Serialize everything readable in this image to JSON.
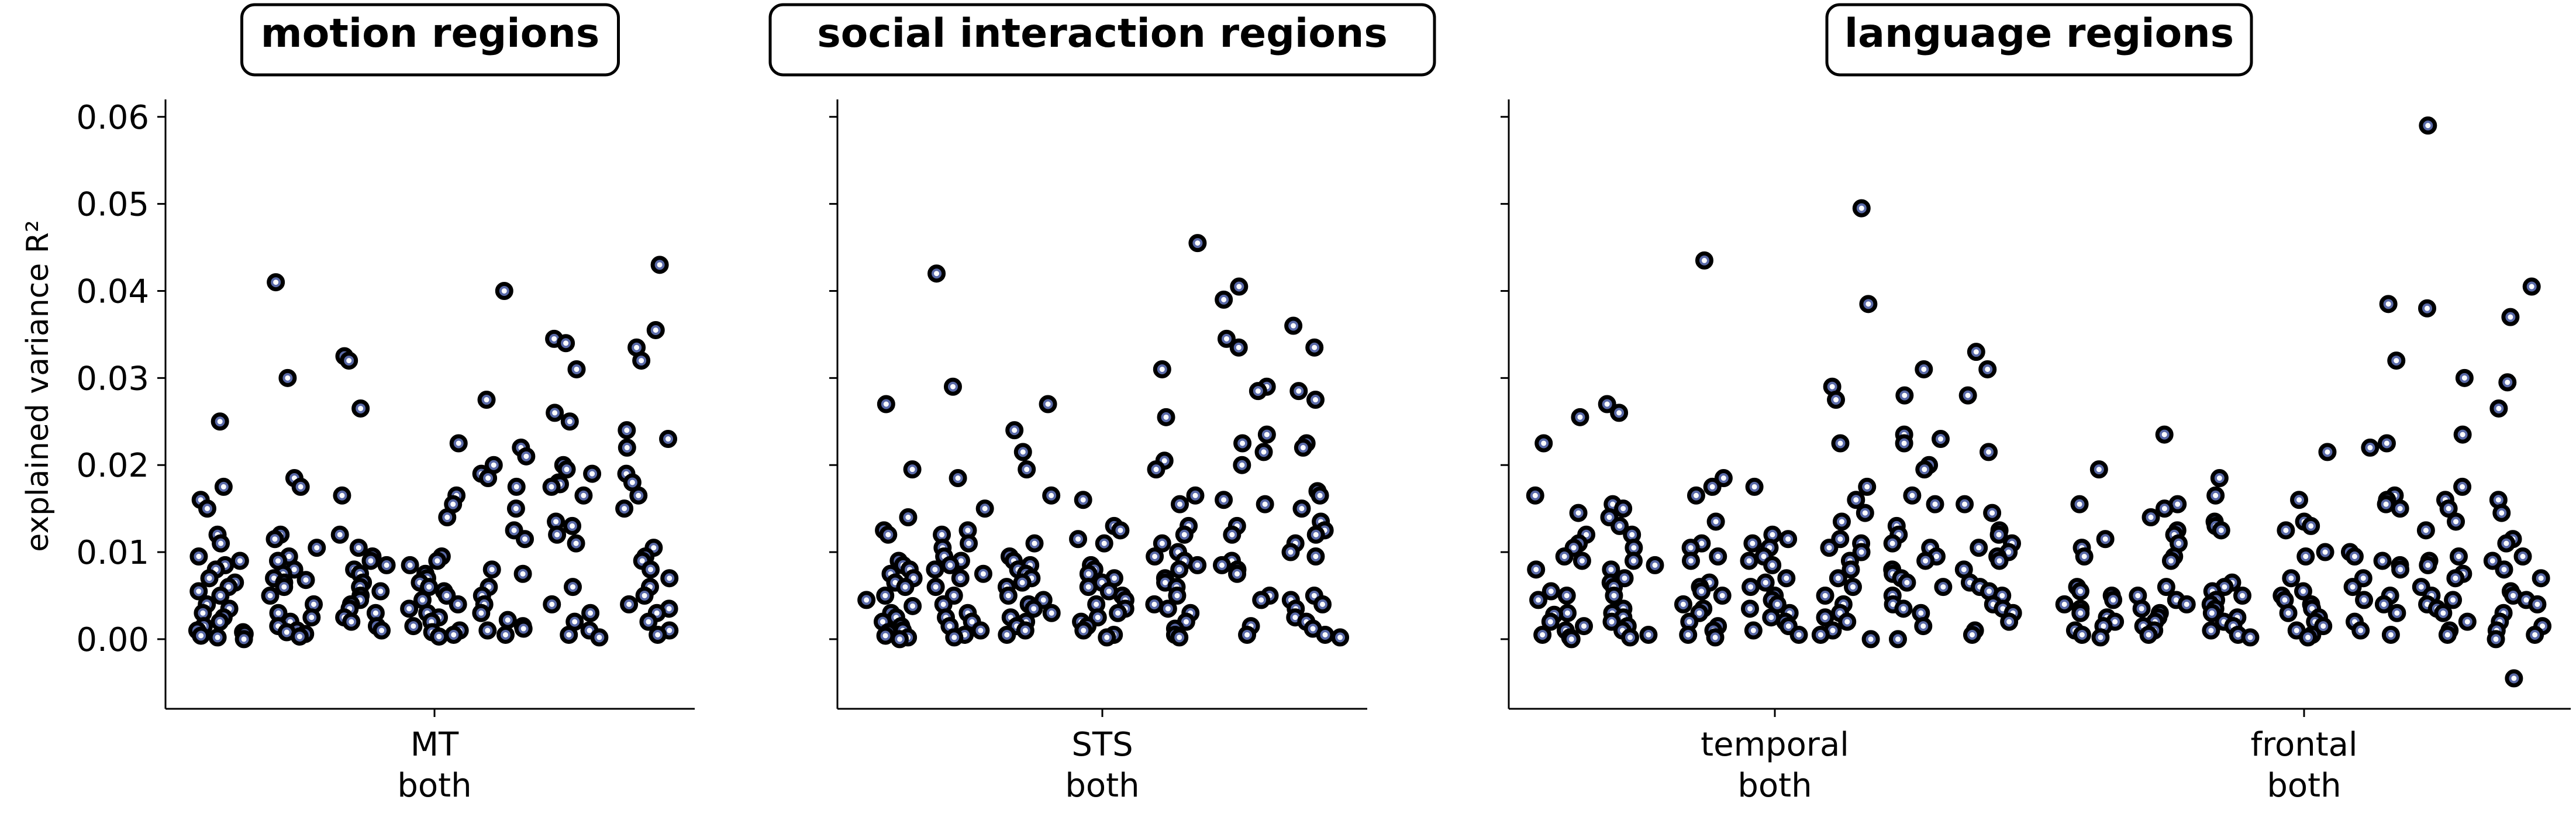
{
  "colors": {
    "marker_edge": "#000000",
    "marker_fill": "#5a6aa8",
    "marker_center": "#ffffff",
    "title_box_edge": "#000000"
  },
  "chart_data": {
    "type": "scatter",
    "ylabel": "explained variance R²",
    "ylim": [
      -0.008,
      0.062
    ],
    "yticks": [
      0.0,
      0.01,
      0.02,
      0.03,
      0.04,
      0.05,
      0.06
    ],
    "ytick_labels": [
      "0.00",
      "0.01",
      "0.02",
      "0.03",
      "0.04",
      "0.05",
      "0.06"
    ],
    "panels": [
      {
        "title": "motion regions",
        "groups": [
          {
            "label_line1": "MT",
            "label_line2": "both",
            "columns": [
              [
                0.025,
                0.0175,
                0.016,
                0.015,
                0.012,
                0.011,
                0.0095,
                0.009,
                0.0085,
                0.008,
                0.007,
                0.0065,
                0.006,
                0.0055,
                0.005,
                0.004,
                0.0035,
                0.003,
                0.0025,
                0.002,
                0.0015,
                0.001,
                0.0008,
                0.0006,
                0.0004,
                0.0002,
                0.0
              ],
              [
                0.041,
                0.03,
                0.0185,
                0.0175,
                0.012,
                0.0115,
                0.0105,
                0.0095,
                0.009,
                0.008,
                0.0075,
                0.007,
                0.0068,
                0.0065,
                0.006,
                0.005,
                0.004,
                0.003,
                0.0025,
                0.002,
                0.0015,
                0.001,
                0.0008,
                0.0006,
                0.0003
              ],
              [
                0.0325,
                0.032,
                0.0265,
                0.0165,
                0.012,
                0.0105,
                0.0095,
                0.009,
                0.0085,
                0.008,
                0.0075,
                0.0065,
                0.006,
                0.0055,
                0.005,
                0.0045,
                0.004,
                0.0035,
                0.003,
                0.0025,
                0.002,
                0.0015,
                0.001
              ],
              [
                0.0225,
                0.0165,
                0.0155,
                0.014,
                0.0095,
                0.009,
                0.0085,
                0.0075,
                0.007,
                0.0065,
                0.006,
                0.0055,
                0.005,
                0.0045,
                0.004,
                0.0035,
                0.003,
                0.0025,
                0.002,
                0.0015,
                0.001,
                0.0008,
                0.0005,
                0.0003
              ],
              [
                0.04,
                0.0275,
                0.022,
                0.021,
                0.02,
                0.019,
                0.0185,
                0.0175,
                0.015,
                0.0125,
                0.0115,
                0.008,
                0.0075,
                0.006,
                0.005,
                0.004,
                0.003,
                0.0022,
                0.0015,
                0.0012,
                0.001,
                0.0005
              ],
              [
                0.0345,
                0.034,
                0.031,
                0.026,
                0.025,
                0.02,
                0.0195,
                0.019,
                0.018,
                0.0178,
                0.0175,
                0.0165,
                0.0135,
                0.013,
                0.012,
                0.011,
                0.006,
                0.004,
                0.003,
                0.002,
                0.001,
                0.0005,
                0.0002
              ],
              [
                0.043,
                0.0355,
                0.0335,
                0.032,
                0.024,
                0.023,
                0.022,
                0.019,
                0.018,
                0.0165,
                0.015,
                0.0105,
                0.0095,
                0.009,
                0.008,
                0.007,
                0.006,
                0.005,
                0.004,
                0.0035,
                0.003,
                0.002,
                0.001,
                0.0005
              ]
            ]
          }
        ]
      },
      {
        "title": "social interaction regions",
        "groups": [
          {
            "label_line1": "STS",
            "label_line2": "both",
            "columns": [
              [
                0.027,
                0.0195,
                0.014,
                0.0125,
                0.012,
                0.009,
                0.0085,
                0.008,
                0.0075,
                0.007,
                0.0065,
                0.006,
                0.005,
                0.0045,
                0.0038,
                0.003,
                0.0025,
                0.002,
                0.0015,
                0.001,
                0.0008,
                0.0004,
                0.0002,
                0.0
              ],
              [
                0.042,
                0.029,
                0.0185,
                0.015,
                0.0125,
                0.012,
                0.011,
                0.0105,
                0.0095,
                0.009,
                0.0085,
                0.008,
                0.0075,
                0.007,
                0.006,
                0.005,
                0.004,
                0.003,
                0.0025,
                0.002,
                0.0015,
                0.001,
                0.0005,
                0.0002
              ],
              [
                0.027,
                0.024,
                0.0215,
                0.0195,
                0.0165,
                0.011,
                0.0095,
                0.009,
                0.0085,
                0.008,
                0.0075,
                0.007,
                0.0065,
                0.006,
                0.005,
                0.0045,
                0.004,
                0.0035,
                0.003,
                0.0025,
                0.002,
                0.0015,
                0.001,
                0.0005
              ],
              [
                0.016,
                0.013,
                0.0125,
                0.0115,
                0.011,
                0.0085,
                0.008,
                0.0075,
                0.007,
                0.0065,
                0.006,
                0.0055,
                0.005,
                0.0045,
                0.004,
                0.0035,
                0.003,
                0.0025,
                0.002,
                0.0015,
                0.001,
                0.0005,
                0.0002
              ],
              [
                0.0455,
                0.031,
                0.0255,
                0.0205,
                0.0195,
                0.0165,
                0.0155,
                0.013,
                0.012,
                0.011,
                0.01,
                0.0095,
                0.009,
                0.0085,
                0.008,
                0.007,
                0.0065,
                0.006,
                0.005,
                0.004,
                0.0035,
                0.003,
                0.002,
                0.0012,
                0.0005,
                0.0002
              ],
              [
                0.0405,
                0.039,
                0.0345,
                0.0335,
                0.029,
                0.0285,
                0.0235,
                0.0225,
                0.0215,
                0.02,
                0.016,
                0.0155,
                0.013,
                0.012,
                0.009,
                0.0085,
                0.008,
                0.0075,
                0.005,
                0.0045,
                0.0015,
                0.0005
              ],
              [
                0.036,
                0.0335,
                0.0285,
                0.0275,
                0.0225,
                0.022,
                0.017,
                0.0165,
                0.015,
                0.0135,
                0.0125,
                0.012,
                0.011,
                0.01,
                0.0095,
                0.005,
                0.0045,
                0.004,
                0.0035,
                0.0025,
                0.002,
                0.0012,
                0.0005,
                0.0002
              ]
            ]
          }
        ]
      },
      {
        "title": "language regions",
        "groups": [
          {
            "label_line1": "temporal",
            "label_line2": "both",
            "columns": [
              [
                0.0255,
                0.0225,
                0.0165,
                0.0145,
                0.012,
                0.011,
                0.0105,
                0.0095,
                0.009,
                0.008,
                0.0055,
                0.005,
                0.0045,
                0.003,
                0.0028,
                0.002,
                0.0015,
                0.001,
                0.0005,
                0.0002,
                0.0
              ],
              [
                0.027,
                0.026,
                0.0155,
                0.015,
                0.014,
                0.013,
                0.012,
                0.0105,
                0.009,
                0.0085,
                0.008,
                0.007,
                0.0065,
                0.006,
                0.005,
                0.0035,
                0.003,
                0.0025,
                0.002,
                0.0015,
                0.001,
                0.0005,
                0.0002
              ],
              [
                0.0435,
                0.0185,
                0.0175,
                0.0165,
                0.0135,
                0.011,
                0.0105,
                0.0095,
                0.009,
                0.0065,
                0.006,
                0.0055,
                0.005,
                0.004,
                0.0035,
                0.003,
                0.002,
                0.0015,
                0.001,
                0.0005,
                0.0002
              ],
              [
                0.0175,
                0.012,
                0.0115,
                0.011,
                0.0105,
                0.0095,
                0.009,
                0.0085,
                0.007,
                0.0065,
                0.006,
                0.005,
                0.0045,
                0.004,
                0.0035,
                0.003,
                0.0025,
                0.002,
                0.0015,
                0.001,
                0.0005
              ],
              [
                0.0495,
                0.0385,
                0.029,
                0.0275,
                0.0225,
                0.0175,
                0.016,
                0.0145,
                0.0135,
                0.0115,
                0.011,
                0.0105,
                0.01,
                0.009,
                0.008,
                0.007,
                0.006,
                0.005,
                0.004,
                0.003,
                0.0025,
                0.002,
                0.001,
                0.0005,
                0.0
              ],
              [
                0.031,
                0.028,
                0.0235,
                0.023,
                0.0225,
                0.02,
                0.0195,
                0.0165,
                0.0155,
                0.013,
                0.012,
                0.011,
                0.0105,
                0.0095,
                0.009,
                0.008,
                0.0075,
                0.007,
                0.0065,
                0.006,
                0.005,
                0.004,
                0.0035,
                0.003,
                0.0015,
                0.0
              ],
              [
                0.033,
                0.031,
                0.028,
                0.0215,
                0.0155,
                0.0145,
                0.0125,
                0.012,
                0.011,
                0.0105,
                0.01,
                0.0095,
                0.009,
                0.008,
                0.0065,
                0.006,
                0.0055,
                0.005,
                0.004,
                0.0035,
                0.003,
                0.002,
                0.001,
                0.0005
              ]
            ]
          },
          {
            "label_line1": "frontal",
            "label_line2": "both",
            "columns": [
              [
                0.0195,
                0.0155,
                0.0115,
                0.0105,
                0.0095,
                0.006,
                0.0055,
                0.005,
                0.0045,
                0.004,
                0.0035,
                0.003,
                0.0025,
                0.002,
                0.0015,
                0.001,
                0.0005,
                0.0002
              ],
              [
                0.0235,
                0.0155,
                0.015,
                0.014,
                0.0125,
                0.012,
                0.011,
                0.0095,
                0.009,
                0.006,
                0.005,
                0.0045,
                0.004,
                0.0035,
                0.003,
                0.0025,
                0.002,
                0.0015,
                0.001,
                0.0005
              ],
              [
                0.0185,
                0.0165,
                0.0135,
                0.013,
                0.0125,
                0.0065,
                0.006,
                0.0055,
                0.005,
                0.0045,
                0.004,
                0.0035,
                0.003,
                0.0025,
                0.002,
                0.0015,
                0.001,
                0.0005,
                0.0002
              ],
              [
                0.0215,
                0.016,
                0.0135,
                0.013,
                0.0125,
                0.01,
                0.0095,
                0.007,
                0.0055,
                0.005,
                0.0045,
                0.004,
                0.0035,
                0.003,
                0.0025,
                0.002,
                0.0015,
                0.001,
                0.0005,
                0.0002
              ],
              [
                0.0385,
                0.032,
                0.0225,
                0.022,
                0.0165,
                0.016,
                0.0155,
                0.015,
                0.01,
                0.0095,
                0.009,
                0.0085,
                0.008,
                0.007,
                0.006,
                0.005,
                0.0045,
                0.004,
                0.003,
                0.002,
                0.001,
                0.0005
              ],
              [
                0.059,
                0.038,
                0.03,
                0.0235,
                0.0175,
                0.016,
                0.015,
                0.0135,
                0.0125,
                0.0095,
                0.009,
                0.0085,
                0.0075,
                0.007,
                0.006,
                0.005,
                0.0045,
                0.004,
                0.0035,
                0.003,
                0.002,
                0.001,
                0.0005
              ],
              [
                0.0405,
                0.037,
                0.0295,
                0.0265,
                0.016,
                0.0145,
                0.0115,
                0.011,
                0.0095,
                0.009,
                0.008,
                0.007,
                0.0055,
                0.005,
                0.0045,
                0.004,
                0.003,
                0.002,
                0.0015,
                0.001,
                0.0005,
                0.0,
                -0.0045
              ]
            ]
          }
        ]
      }
    ]
  }
}
